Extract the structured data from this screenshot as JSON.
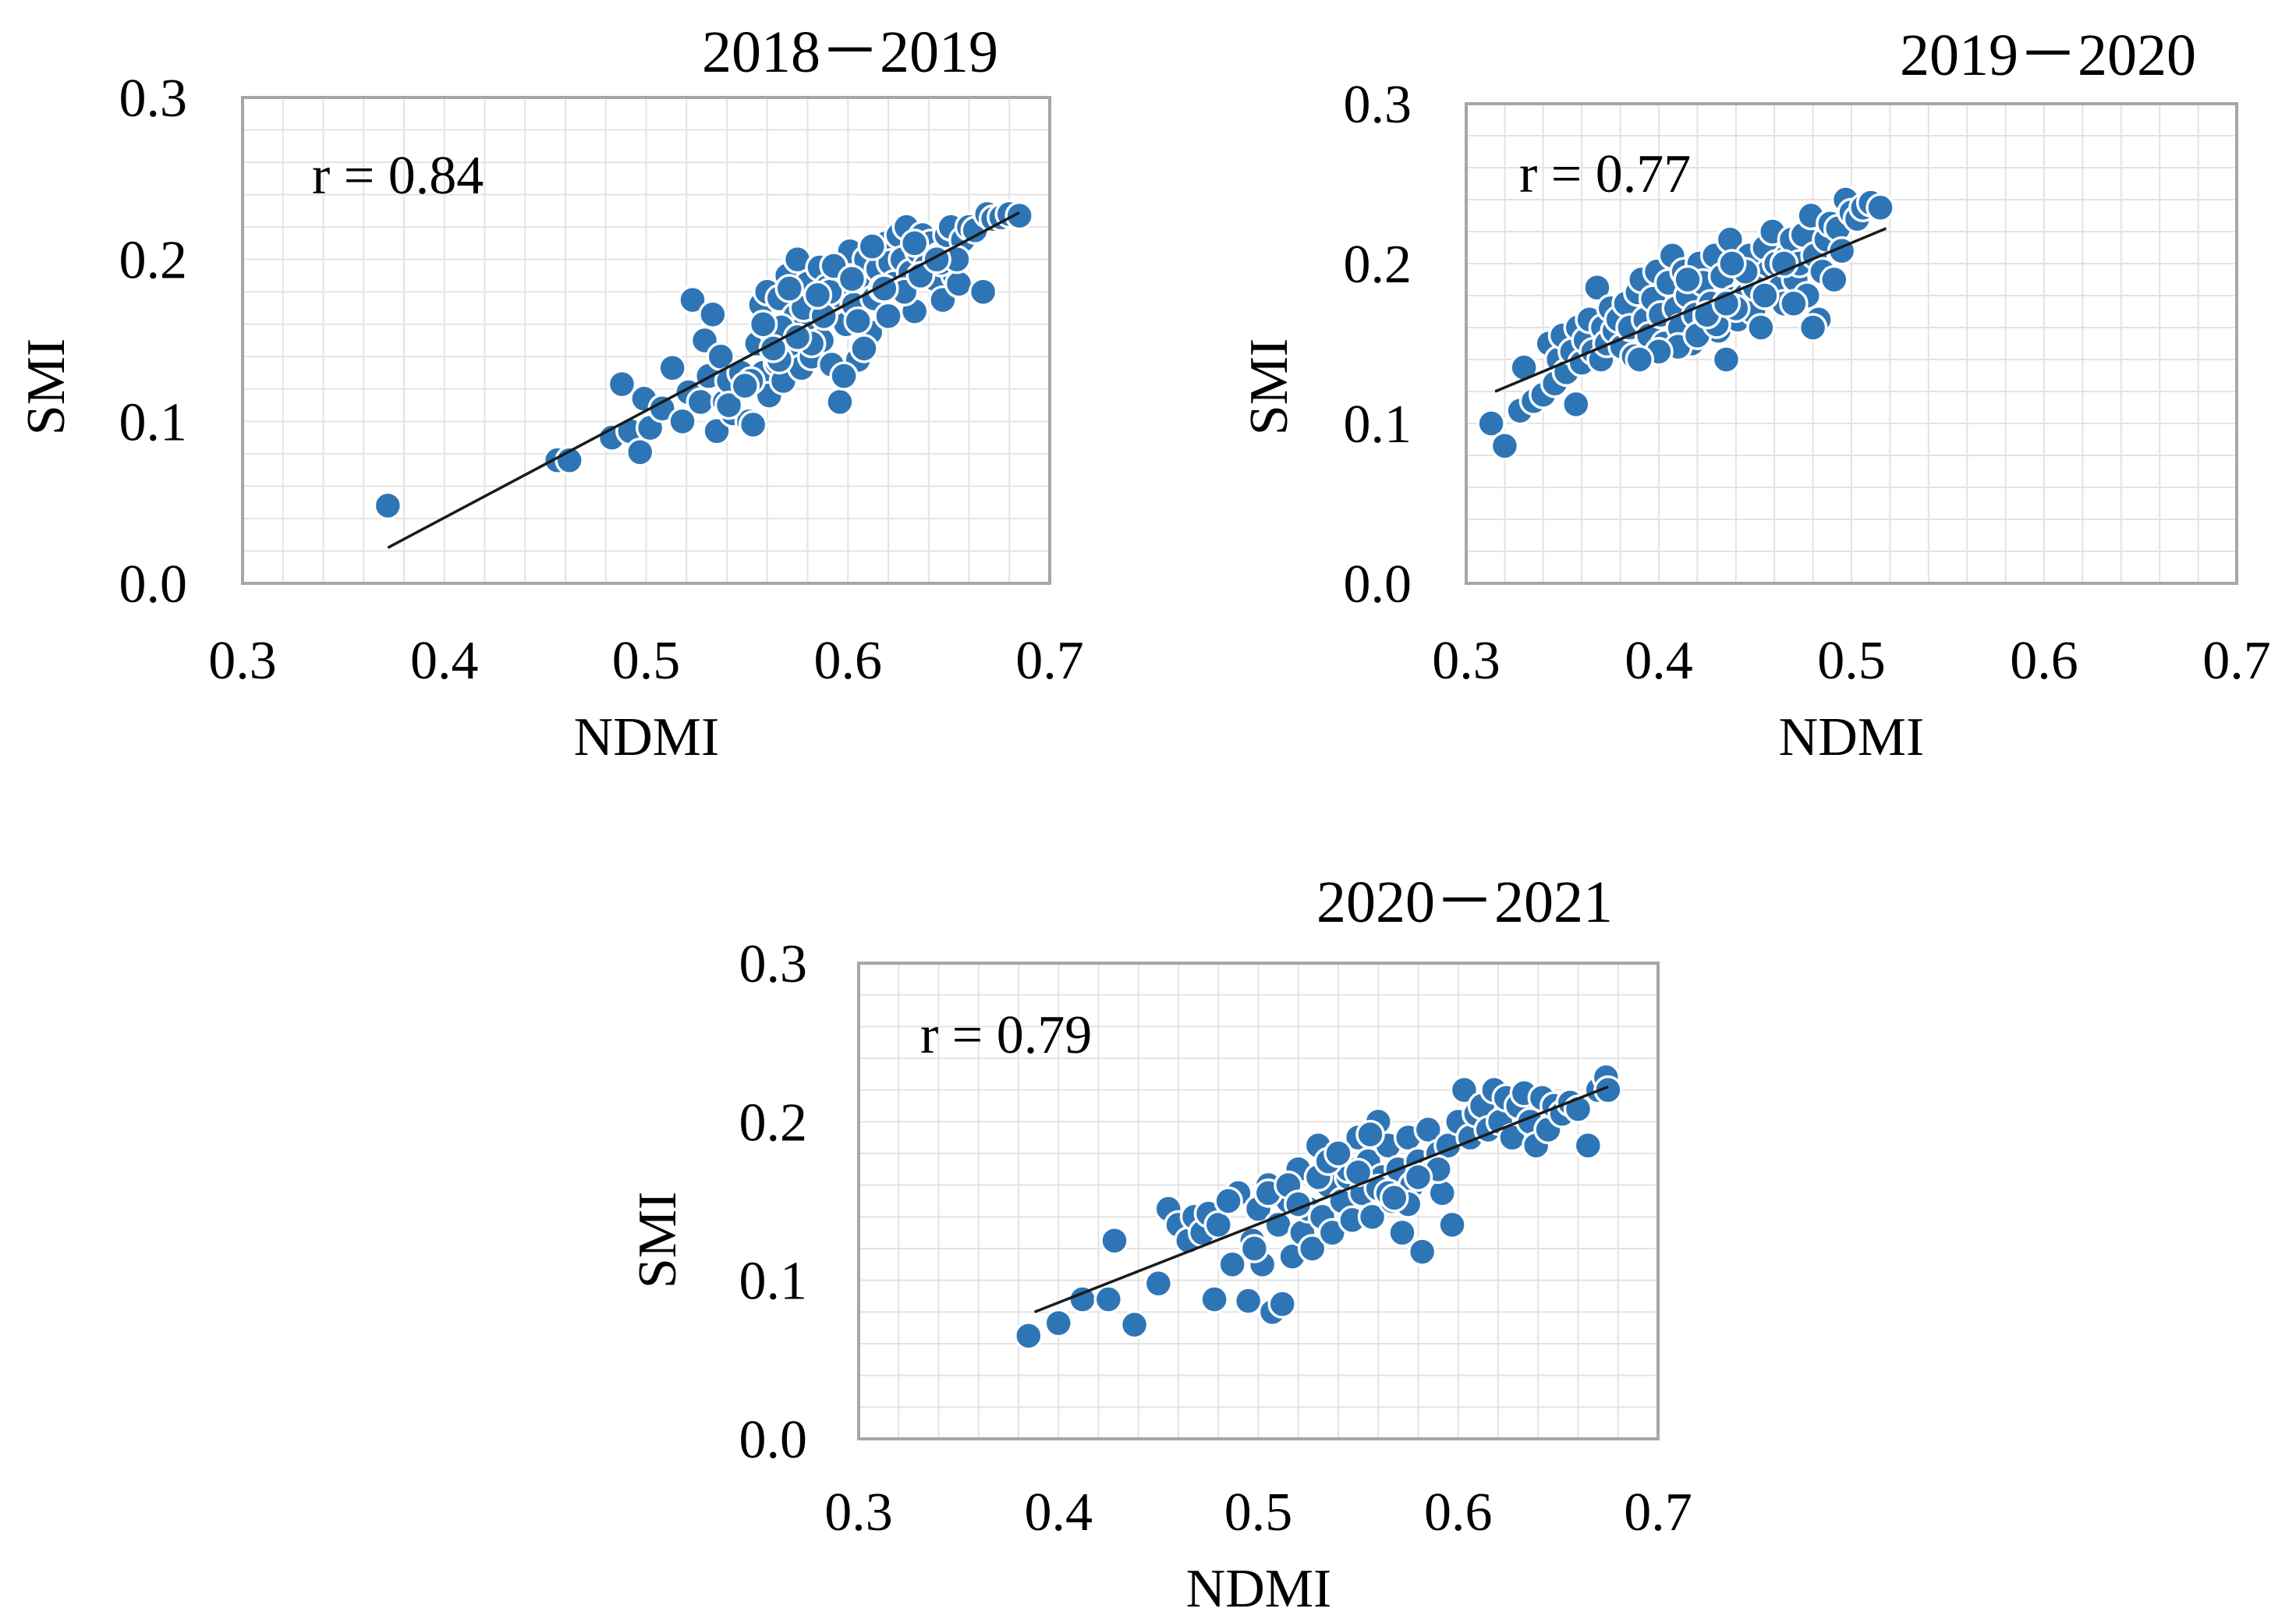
{
  "figure": {
    "marker_color": "#2e75b6",
    "marker_edge_color": "#ffffff",
    "trendline_color": "#1a1a1a",
    "plot_border_color": "#a6a6a6",
    "grid_color": "#e3e3e3"
  },
  "chart_data": [
    {
      "type": "scatter",
      "title": "2018－2019",
      "xlabel": "NDMI",
      "ylabel": "SMI",
      "annotation": "r = 0.84",
      "xlim": [
        0.3,
        0.7
      ],
      "ylim": [
        0.0,
        0.3
      ],
      "xticks": [
        "0.3",
        "0.4",
        "0.5",
        "0.6",
        "0.7"
      ],
      "yticks": [
        "0.0",
        "0.1",
        "0.2",
        "0.3"
      ],
      "trendline": {
        "x": [
          0.372,
          0.685
        ],
        "y": [
          0.022,
          0.229
        ]
      },
      "points": {
        "x": [
          0.372,
          0.456,
          0.462,
          0.483,
          0.488,
          0.492,
          0.497,
          0.499,
          0.502,
          0.508,
          0.513,
          0.518,
          0.521,
          0.523,
          0.527,
          0.529,
          0.531,
          0.533,
          0.535,
          0.537,
          0.539,
          0.541,
          0.543,
          0.547,
          0.551,
          0.553,
          0.555,
          0.557,
          0.558,
          0.56,
          0.561,
          0.563,
          0.565,
          0.566,
          0.568,
          0.57,
          0.572,
          0.574,
          0.575,
          0.577,
          0.579,
          0.58,
          0.582,
          0.584,
          0.586,
          0.587,
          0.589,
          0.59,
          0.592,
          0.594,
          0.596,
          0.597,
          0.599,
          0.601,
          0.603,
          0.605,
          0.607,
          0.609,
          0.611,
          0.613,
          0.615,
          0.617,
          0.619,
          0.621,
          0.623,
          0.625,
          0.627,
          0.629,
          0.631,
          0.633,
          0.635,
          0.637,
          0.639,
          0.641,
          0.643,
          0.645,
          0.647,
          0.649,
          0.651,
          0.653,
          0.655,
          0.657,
          0.66,
          0.663,
          0.667,
          0.669,
          0.672,
          0.676,
          0.68,
          0.685,
          0.598,
          0.608,
          0.62,
          0.552,
          0.566,
          0.578,
          0.541,
          0.549,
          0.567,
          0.582,
          0.605,
          0.591,
          0.575,
          0.563,
          0.593,
          0.612,
          0.628,
          0.646,
          0.636,
          0.654,
          0.588,
          0.571,
          0.558,
          0.585,
          0.602,
          0.618,
          0.633,
          0.644
        ],
        "y": [
          0.048,
          0.076,
          0.076,
          0.09,
          0.123,
          0.094,
          0.081,
          0.114,
          0.096,
          0.108,
          0.133,
          0.1,
          0.118,
          0.175,
          0.112,
          0.15,
          0.128,
          0.166,
          0.094,
          0.14,
          0.112,
          0.125,
          0.105,
          0.13,
          0.1,
          0.098,
          0.148,
          0.172,
          0.13,
          0.18,
          0.116,
          0.155,
          0.136,
          0.176,
          0.125,
          0.19,
          0.145,
          0.165,
          0.2,
          0.133,
          0.16,
          0.185,
          0.14,
          0.175,
          0.195,
          0.15,
          0.165,
          0.183,
          0.135,
          0.178,
          0.112,
          0.19,
          0.16,
          0.205,
          0.172,
          0.138,
          0.19,
          0.2,
          0.155,
          0.176,
          0.194,
          0.182,
          0.21,
          0.198,
          0.185,
          0.215,
          0.2,
          0.22,
          0.192,
          0.168,
          0.205,
          0.215,
          0.196,
          0.21,
          0.188,
          0.202,
          0.175,
          0.215,
          0.22,
          0.19,
          0.185,
          0.212,
          0.22,
          0.218,
          0.18,
          0.228,
          0.225,
          0.226,
          0.228,
          0.227,
          0.128,
          0.145,
          0.165,
          0.125,
          0.138,
          0.17,
          0.11,
          0.122,
          0.158,
          0.148,
          0.162,
          0.18,
          0.152,
          0.145,
          0.196,
          0.208,
          0.18,
          0.198,
          0.19,
          0.2,
          0.165,
          0.182,
          0.16,
          0.178,
          0.188,
          0.182,
          0.21,
          0.2
        ]
      }
    },
    {
      "type": "scatter",
      "title": "2019－2020",
      "xlabel": "NDMI",
      "ylabel": "SMI",
      "annotation": "r = 0.77",
      "xlim": [
        0.3,
        0.7
      ],
      "ylim": [
        0.0,
        0.3
      ],
      "xticks": [
        "0.3",
        "0.4",
        "0.5",
        "0.6",
        "0.7"
      ],
      "yticks": [
        "0.0",
        "0.1",
        "0.2",
        "0.3"
      ],
      "trendline": {
        "x": [
          0.315,
          0.518
        ],
        "y": [
          0.12,
          0.222
        ]
      },
      "points": {
        "x": [
          0.313,
          0.32,
          0.328,
          0.33,
          0.335,
          0.34,
          0.343,
          0.346,
          0.348,
          0.35,
          0.352,
          0.355,
          0.357,
          0.358,
          0.36,
          0.362,
          0.364,
          0.366,
          0.368,
          0.37,
          0.371,
          0.373,
          0.375,
          0.377,
          0.379,
          0.381,
          0.383,
          0.385,
          0.387,
          0.389,
          0.391,
          0.393,
          0.395,
          0.397,
          0.399,
          0.401,
          0.403,
          0.405,
          0.407,
          0.409,
          0.411,
          0.413,
          0.415,
          0.417,
          0.419,
          0.421,
          0.423,
          0.425,
          0.427,
          0.429,
          0.431,
          0.433,
          0.435,
          0.437,
          0.439,
          0.441,
          0.443,
          0.445,
          0.447,
          0.449,
          0.451,
          0.453,
          0.455,
          0.457,
          0.459,
          0.461,
          0.463,
          0.465,
          0.467,
          0.469,
          0.471,
          0.473,
          0.475,
          0.477,
          0.479,
          0.481,
          0.483,
          0.485,
          0.487,
          0.489,
          0.491,
          0.493,
          0.495,
          0.497,
          0.5,
          0.503,
          0.506,
          0.51,
          0.515,
          0.41,
          0.42,
          0.43,
          0.44,
          0.45,
          0.425,
          0.435,
          0.445,
          0.455,
          0.465,
          0.4,
          0.39,
          0.47,
          0.48,
          0.415,
          0.438
        ],
        "y": [
          0.1,
          0.086,
          0.108,
          0.135,
          0.114,
          0.118,
          0.15,
          0.125,
          0.14,
          0.155,
          0.132,
          0.145,
          0.112,
          0.16,
          0.138,
          0.152,
          0.165,
          0.145,
          0.185,
          0.14,
          0.16,
          0.15,
          0.172,
          0.158,
          0.165,
          0.148,
          0.175,
          0.16,
          0.142,
          0.182,
          0.19,
          0.165,
          0.155,
          0.178,
          0.195,
          0.168,
          0.15,
          0.188,
          0.205,
          0.172,
          0.16,
          0.195,
          0.18,
          0.15,
          0.168,
          0.2,
          0.188,
          0.165,
          0.175,
          0.205,
          0.158,
          0.192,
          0.14,
          0.215,
          0.178,
          0.165,
          0.198,
          0.18,
          0.205,
          0.17,
          0.19,
          0.16,
          0.21,
          0.195,
          0.22,
          0.2,
          0.185,
          0.175,
          0.205,
          0.215,
          0.19,
          0.2,
          0.218,
          0.18,
          0.23,
          0.205,
          0.165,
          0.195,
          0.215,
          0.225,
          0.19,
          0.222,
          0.208,
          0.24,
          0.232,
          0.228,
          0.235,
          0.238,
          0.235,
          0.148,
          0.155,
          0.162,
          0.172,
          0.185,
          0.168,
          0.175,
          0.195,
          0.18,
          0.2,
          0.145,
          0.14,
          0.175,
          0.16,
          0.19,
          0.2
        ]
      }
    },
    {
      "type": "scatter",
      "title": "2020－2021",
      "xlabel": "NDMI",
      "ylabel": "SMI",
      "annotation": "r = 0.79",
      "xlim": [
        0.3,
        0.7
      ],
      "ylim": [
        0.0,
        0.3
      ],
      "xticks": [
        "0.3",
        "0.4",
        "0.5",
        "0.6",
        "0.7"
      ],
      "yticks": [
        "0.0",
        "0.1",
        "0.2",
        "0.3"
      ],
      "trendline": {
        "x": [
          0.388,
          0.675
        ],
        "y": [
          0.08,
          0.222
        ]
      },
      "points": {
        "x": [
          0.385,
          0.4,
          0.412,
          0.425,
          0.428,
          0.438,
          0.45,
          0.455,
          0.46,
          0.465,
          0.468,
          0.472,
          0.475,
          0.478,
          0.48,
          0.487,
          0.49,
          0.495,
          0.497,
          0.5,
          0.502,
          0.505,
          0.507,
          0.51,
          0.512,
          0.515,
          0.517,
          0.52,
          0.522,
          0.525,
          0.527,
          0.53,
          0.532,
          0.535,
          0.537,
          0.54,
          0.542,
          0.545,
          0.547,
          0.55,
          0.552,
          0.555,
          0.557,
          0.56,
          0.562,
          0.565,
          0.567,
          0.57,
          0.572,
          0.575,
          0.577,
          0.58,
          0.582,
          0.585,
          0.587,
          0.59,
          0.592,
          0.595,
          0.597,
          0.6,
          0.603,
          0.606,
          0.609,
          0.612,
          0.615,
          0.618,
          0.621,
          0.624,
          0.627,
          0.63,
          0.633,
          0.636,
          0.639,
          0.642,
          0.645,
          0.648,
          0.652,
          0.656,
          0.66,
          0.665,
          0.67,
          0.674,
          0.675,
          0.505,
          0.515,
          0.53,
          0.545,
          0.56,
          0.575,
          0.59,
          0.535,
          0.55,
          0.565,
          0.58,
          0.52,
          0.54,
          0.556,
          0.568,
          0.498,
          0.485
        ],
        "y": [
          0.065,
          0.073,
          0.088,
          0.088,
          0.125,
          0.072,
          0.098,
          0.145,
          0.135,
          0.125,
          0.14,
          0.13,
          0.142,
          0.088,
          0.135,
          0.11,
          0.155,
          0.087,
          0.125,
          0.145,
          0.11,
          0.16,
          0.08,
          0.135,
          0.085,
          0.15,
          0.115,
          0.17,
          0.13,
          0.145,
          0.12,
          0.185,
          0.14,
          0.16,
          0.13,
          0.178,
          0.15,
          0.165,
          0.138,
          0.19,
          0.155,
          0.175,
          0.14,
          0.2,
          0.165,
          0.185,
          0.15,
          0.17,
          0.13,
          0.19,
          0.16,
          0.175,
          0.118,
          0.195,
          0.168,
          0.18,
          0.155,
          0.185,
          0.135,
          0.2,
          0.22,
          0.19,
          0.205,
          0.21,
          0.195,
          0.22,
          0.2,
          0.215,
          0.19,
          0.21,
          0.218,
          0.2,
          0.185,
          0.215,
          0.195,
          0.21,
          0.205,
          0.212,
          0.208,
          0.185,
          0.22,
          0.228,
          0.22,
          0.155,
          0.16,
          0.165,
          0.17,
          0.158,
          0.148,
          0.17,
          0.175,
          0.168,
          0.155,
          0.165,
          0.148,
          0.18,
          0.192,
          0.152,
          0.12,
          0.15
        ]
      }
    }
  ]
}
